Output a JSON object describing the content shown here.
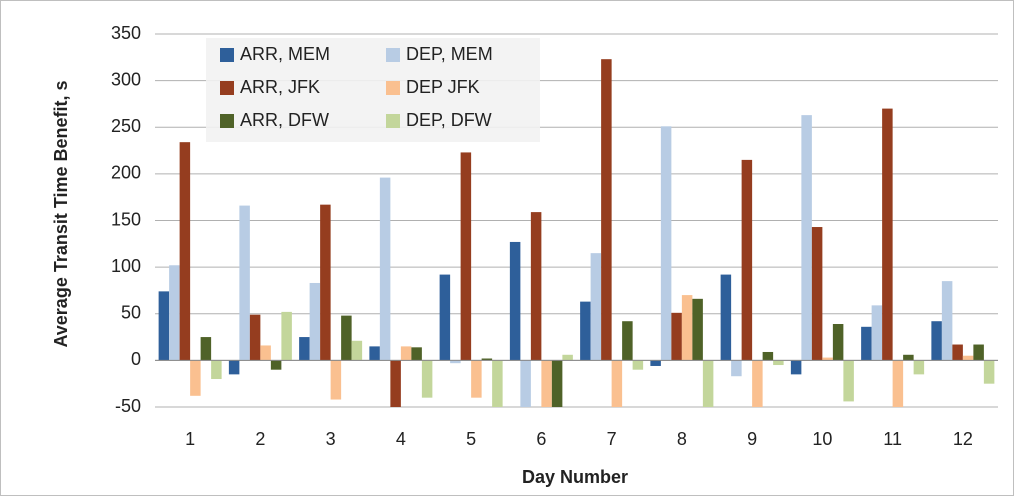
{
  "chart_data": {
    "type": "bar",
    "xlabel": "Day Number",
    "ylabel": "Average Transit Time Benefit, s",
    "categories": [
      "1",
      "2",
      "3",
      "4",
      "5",
      "6",
      "7",
      "8",
      "9",
      "10",
      "11",
      "12"
    ],
    "series": [
      {
        "name": "ARR, MEM",
        "color": "#2e5f9a",
        "values": [
          74,
          -15,
          25,
          15,
          92,
          127,
          63,
          -6,
          92,
          -15,
          36,
          42
        ]
      },
      {
        "name": "DEP, MEM",
        "color": "#b8cce4",
        "values": [
          102,
          166,
          83,
          196,
          -3,
          -50,
          115,
          251,
          -17,
          263,
          59,
          85
        ]
      },
      {
        "name": "ARR, JFK",
        "color": "#953d1f",
        "values": [
          234,
          49,
          167,
          -50,
          223,
          159,
          323,
          51,
          215,
          143,
          270,
          17
        ]
      },
      {
        "name": "DEP JFK",
        "color": "#fac090",
        "values": [
          -38,
          16,
          -42,
          15,
          -40,
          -50,
          -50,
          70,
          -50,
          3,
          -50,
          5
        ]
      },
      {
        "name": "ARR, DFW",
        "color": "#4f6228",
        "values": [
          25,
          -10,
          48,
          14,
          2,
          -50,
          42,
          66,
          9,
          39,
          6,
          17
        ]
      },
      {
        "name": "DEP, DFW",
        "color": "#c3d69b",
        "values": [
          -20,
          52,
          21,
          -40,
          -50,
          6,
          -10,
          -50,
          -5,
          -44,
          -15,
          -25
        ]
      }
    ],
    "ylim": [
      -50,
      350
    ],
    "yticks": [
      -50,
      0,
      50,
      100,
      150,
      200,
      250,
      300,
      350
    ],
    "grid": true,
    "legend": "upper left"
  }
}
